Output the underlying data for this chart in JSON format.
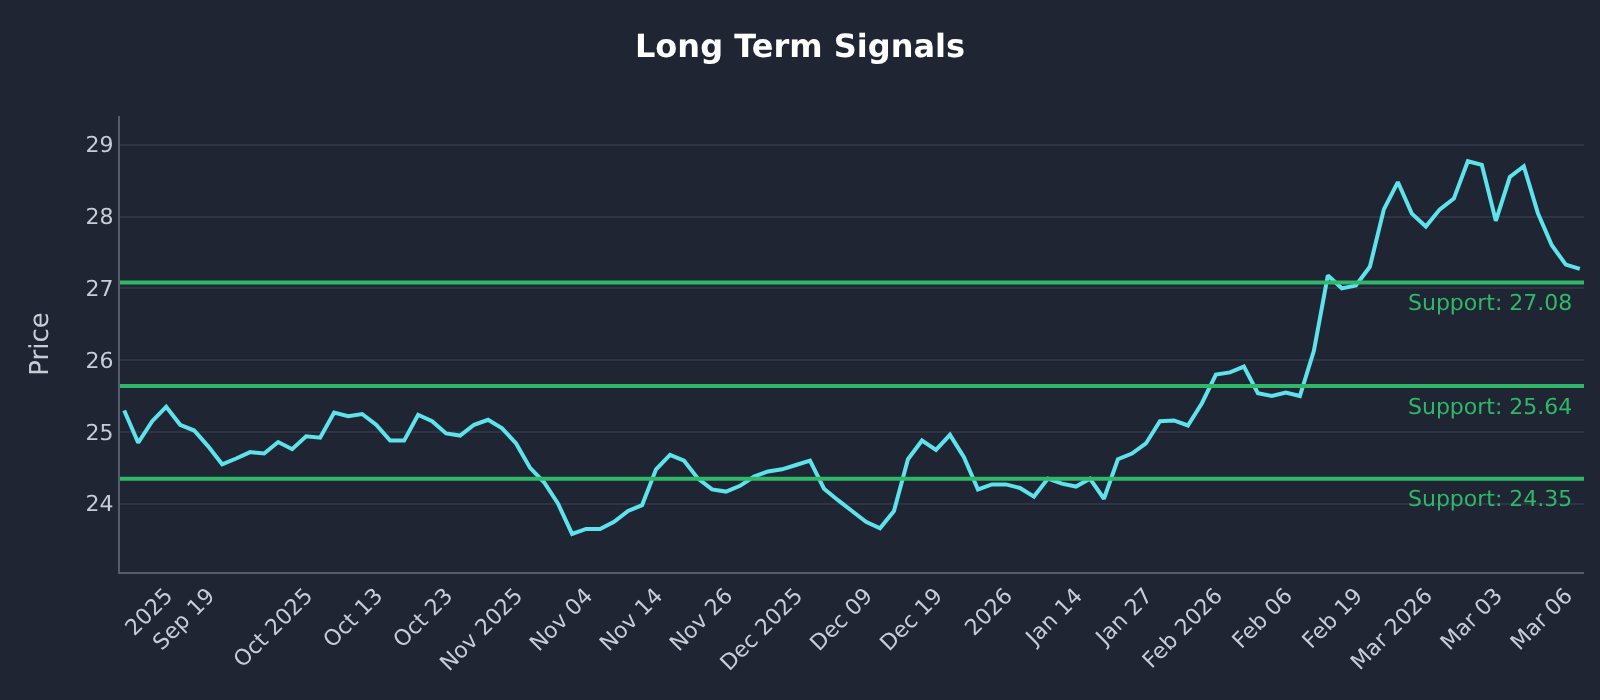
{
  "chart_data": {
    "type": "line",
    "title": "Long Term Signals",
    "ylabel": "Price",
    "categories": [
      null,
      null,
      null,
      "2025",
      null,
      null,
      "Sep 19",
      null,
      null,
      null,
      null,
      null,
      null,
      "Oct 2025",
      null,
      null,
      null,
      null,
      "Oct 13",
      null,
      null,
      null,
      null,
      "Oct 23",
      null,
      null,
      null,
      null,
      "Nov 2025",
      null,
      null,
      null,
      null,
      "Nov 04",
      null,
      null,
      null,
      null,
      "Nov 14",
      null,
      null,
      null,
      null,
      "Nov 26",
      null,
      null,
      null,
      null,
      "Dec 2025",
      null,
      null,
      null,
      null,
      "Dec 09",
      null,
      null,
      null,
      null,
      "Dec 19",
      null,
      null,
      null,
      null,
      "2026",
      null,
      null,
      null,
      null,
      "Jan 14",
      null,
      null,
      null,
      null,
      "Jan 27",
      null,
      null,
      null,
      null,
      "Feb 2026",
      null,
      null,
      null,
      null,
      "Feb 06",
      null,
      null,
      null,
      null,
      "Feb 19",
      null,
      null,
      null,
      null,
      "Mar 2026",
      null,
      null,
      null,
      null,
      "Mar 03",
      null,
      null,
      null,
      null,
      "Mar 06",
      null
    ],
    "series": [
      {
        "color": "#5ee3ec",
        "values": [
          25.3,
          24.85,
          25.15,
          25.35,
          25.1,
          25.02,
          24.8,
          24.55,
          24.63,
          24.72,
          24.7,
          24.86,
          24.76,
          24.94,
          24.92,
          25.27,
          25.22,
          25.25,
          25.1,
          24.88,
          24.88,
          25.24,
          25.15,
          24.98,
          24.95,
          25.1,
          25.17,
          25.05,
          24.84,
          24.5,
          24.3,
          24.0,
          23.58,
          23.65,
          23.65,
          23.75,
          23.9,
          23.98,
          24.48,
          24.68,
          24.6,
          24.35,
          24.2,
          24.17,
          24.25,
          24.38,
          24.45,
          24.48,
          24.54,
          24.6,
          24.21,
          24.05,
          23.9,
          23.75,
          23.66,
          23.9,
          24.62,
          24.88,
          24.75,
          24.96,
          24.65,
          24.2,
          24.27,
          24.27,
          24.22,
          24.1,
          24.35,
          24.28,
          24.24,
          24.35,
          24.07,
          24.62,
          24.7,
          24.84,
          25.15,
          25.16,
          25.09,
          25.4,
          25.8,
          25.83,
          25.91,
          25.54,
          25.5,
          25.55,
          25.5,
          26.13,
          27.18,
          27.0,
          27.04,
          27.3,
          28.1,
          28.48,
          28.04,
          27.86,
          28.1,
          28.25,
          28.77,
          28.72,
          27.94,
          28.55,
          28.7,
          28.05,
          27.6,
          27.33,
          27.27
        ]
      }
    ],
    "ylim": [
      23.05,
      29.4
    ],
    "yticks": [
      24,
      25,
      26,
      27,
      28,
      29
    ],
    "grid": "y",
    "marker": "none",
    "line_style": "solid",
    "ref_lines": [
      {
        "axis": "y",
        "value": 27.08,
        "label": "Support: 27.08",
        "color": "#2fb868"
      },
      {
        "axis": "y",
        "value": 25.64,
        "label": "Support: 25.64",
        "color": "#2fb868"
      },
      {
        "axis": "y",
        "value": 24.35,
        "label": "Support: 24.35",
        "color": "#2fb868"
      }
    ]
  }
}
